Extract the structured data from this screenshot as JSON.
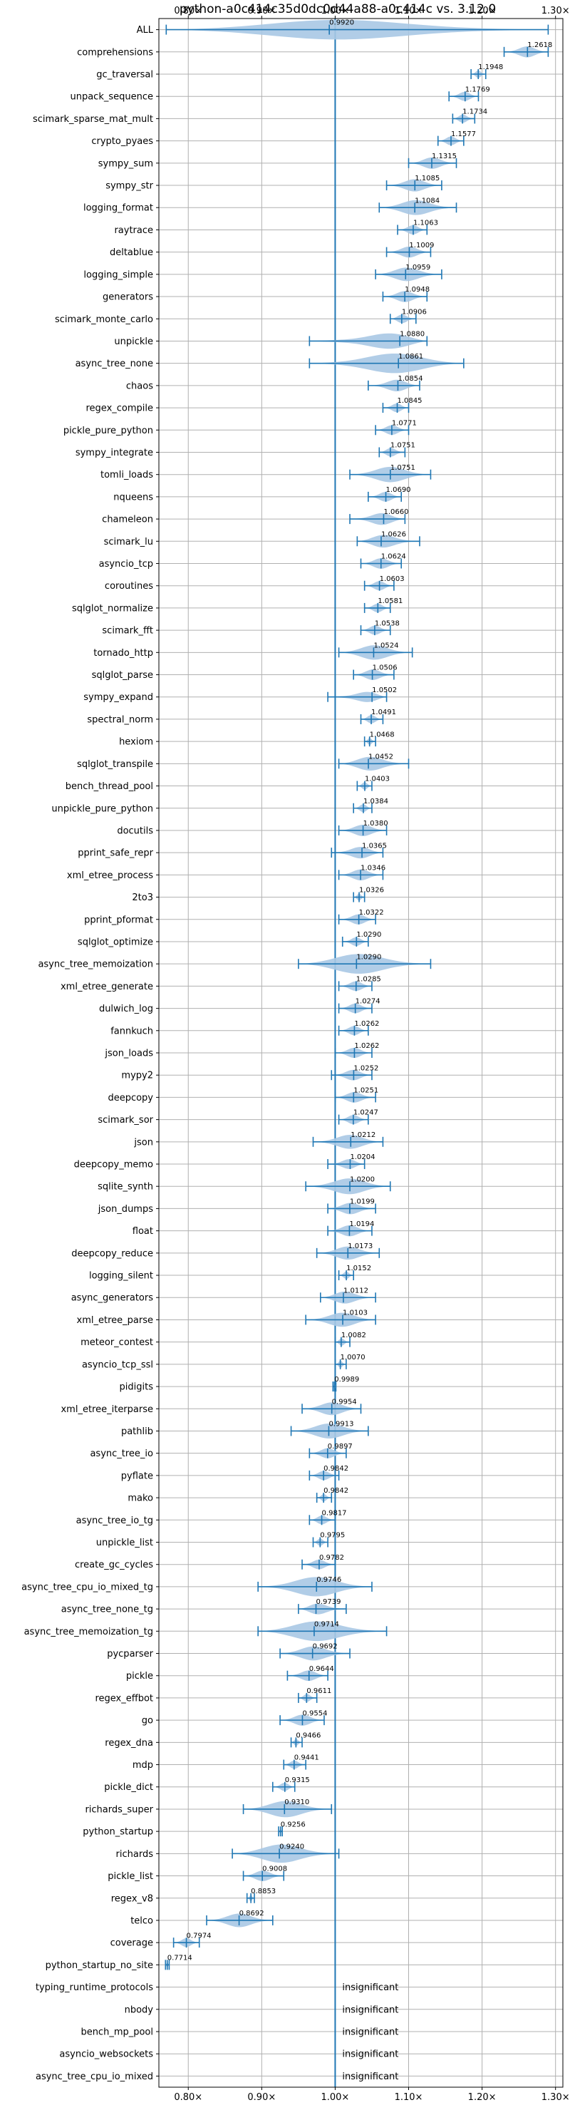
{
  "chart_data": {
    "type": "violin",
    "title": "python-a0c414c35d0dc0d44a88-a0c414c vs. 3.12.0",
    "xlabel": "",
    "ylabel": "",
    "xlim": [
      0.76,
      1.31
    ],
    "xticks": [
      {
        "value": 0.8,
        "label": "0.80×"
      },
      {
        "value": 0.9,
        "label": "0.90×"
      },
      {
        "value": 1.0,
        "label": "1.00×"
      },
      {
        "value": 1.1,
        "label": "1.10×"
      },
      {
        "value": 1.2,
        "label": "1.20×"
      },
      {
        "value": 1.3,
        "label": "1.30×"
      }
    ],
    "reference_line": 1.0,
    "grid": true,
    "colors": {
      "violin": "#a9c8e4",
      "line": "#1f77b4",
      "grid": "#b0b0b0"
    },
    "insignificant_text": "insignificant",
    "benchmarks": [
      {
        "name": "ALL",
        "value": 0.992,
        "label": "0.9920",
        "min": 0.77,
        "max": 1.29
      },
      {
        "name": "comprehensions",
        "value": 1.2618,
        "label": "1.2618",
        "min": 1.23,
        "max": 1.29
      },
      {
        "name": "gc_traversal",
        "value": 1.1948,
        "label": "1.1948",
        "min": 1.185,
        "max": 1.205
      },
      {
        "name": "unpack_sequence",
        "value": 1.1769,
        "label": "1.1769",
        "min": 1.155,
        "max": 1.195
      },
      {
        "name": "scimark_sparse_mat_mult",
        "value": 1.1734,
        "label": "1.1734",
        "min": 1.16,
        "max": 1.19
      },
      {
        "name": "crypto_pyaes",
        "value": 1.1577,
        "label": "1.1577",
        "min": 1.14,
        "max": 1.175
      },
      {
        "name": "sympy_sum",
        "value": 1.1315,
        "label": "1.1315",
        "min": 1.1,
        "max": 1.165
      },
      {
        "name": "sympy_str",
        "value": 1.1085,
        "label": "1.1085",
        "min": 1.07,
        "max": 1.145
      },
      {
        "name": "logging_format",
        "value": 1.1084,
        "label": "1.1084",
        "min": 1.06,
        "max": 1.165
      },
      {
        "name": "raytrace",
        "value": 1.1063,
        "label": "1.1063",
        "min": 1.085,
        "max": 1.125
      },
      {
        "name": "deltablue",
        "value": 1.1009,
        "label": "1.1009",
        "min": 1.07,
        "max": 1.13
      },
      {
        "name": "logging_simple",
        "value": 1.0959,
        "label": "1.0959",
        "min": 1.055,
        "max": 1.145
      },
      {
        "name": "generators",
        "value": 1.0948,
        "label": "1.0948",
        "min": 1.065,
        "max": 1.125
      },
      {
        "name": "scimark_monte_carlo",
        "value": 1.0906,
        "label": "1.0906",
        "min": 1.075,
        "max": 1.11
      },
      {
        "name": "unpickle",
        "value": 1.088,
        "label": "1.0880",
        "min": 0.965,
        "max": 1.125
      },
      {
        "name": "async_tree_none",
        "value": 1.0861,
        "label": "1.0861",
        "min": 0.965,
        "max": 1.175
      },
      {
        "name": "chaos",
        "value": 1.0854,
        "label": "1.0854",
        "min": 1.045,
        "max": 1.115
      },
      {
        "name": "regex_compile",
        "value": 1.0845,
        "label": "1.0845",
        "min": 1.065,
        "max": 1.1
      },
      {
        "name": "pickle_pure_python",
        "value": 1.0771,
        "label": "1.0771",
        "min": 1.055,
        "max": 1.1
      },
      {
        "name": "sympy_integrate",
        "value": 1.0751,
        "label": "1.0751",
        "min": 1.06,
        "max": 1.095
      },
      {
        "name": "tomli_loads",
        "value": 1.0751,
        "label": "1.0751",
        "min": 1.02,
        "max": 1.13
      },
      {
        "name": "nqueens",
        "value": 1.069,
        "label": "1.0690",
        "min": 1.045,
        "max": 1.09
      },
      {
        "name": "chameleon",
        "value": 1.066,
        "label": "1.0660",
        "min": 1.02,
        "max": 1.095
      },
      {
        "name": "scimark_lu",
        "value": 1.0626,
        "label": "1.0626",
        "min": 1.03,
        "max": 1.115
      },
      {
        "name": "asyncio_tcp",
        "value": 1.0624,
        "label": "1.0624",
        "min": 1.035,
        "max": 1.09
      },
      {
        "name": "coroutines",
        "value": 1.0603,
        "label": "1.0603",
        "min": 1.04,
        "max": 1.08
      },
      {
        "name": "sqlglot_normalize",
        "value": 1.0581,
        "label": "1.0581",
        "min": 1.04,
        "max": 1.075
      },
      {
        "name": "scimark_fft",
        "value": 1.0538,
        "label": "1.0538",
        "min": 1.035,
        "max": 1.075
      },
      {
        "name": "tornado_http",
        "value": 1.0524,
        "label": "1.0524",
        "min": 1.005,
        "max": 1.105
      },
      {
        "name": "sqlglot_parse",
        "value": 1.0506,
        "label": "1.0506",
        "min": 1.025,
        "max": 1.08
      },
      {
        "name": "sympy_expand",
        "value": 1.0502,
        "label": "1.0502",
        "min": 0.99,
        "max": 1.07
      },
      {
        "name": "spectral_norm",
        "value": 1.0491,
        "label": "1.0491",
        "min": 1.035,
        "max": 1.065
      },
      {
        "name": "hexiom",
        "value": 1.0468,
        "label": "1.0468",
        "min": 1.04,
        "max": 1.055
      },
      {
        "name": "sqlglot_transpile",
        "value": 1.0452,
        "label": "1.0452",
        "min": 1.005,
        "max": 1.1
      },
      {
        "name": "bench_thread_pool",
        "value": 1.0403,
        "label": "1.0403",
        "min": 1.03,
        "max": 1.05
      },
      {
        "name": "unpickle_pure_python",
        "value": 1.0384,
        "label": "1.0384",
        "min": 1.025,
        "max": 1.05
      },
      {
        "name": "docutils",
        "value": 1.038,
        "label": "1.0380",
        "min": 1.005,
        "max": 1.07
      },
      {
        "name": "pprint_safe_repr",
        "value": 1.0365,
        "label": "1.0365",
        "min": 0.995,
        "max": 1.065
      },
      {
        "name": "xml_etree_process",
        "value": 1.0346,
        "label": "1.0346",
        "min": 1.005,
        "max": 1.065
      },
      {
        "name": "2to3",
        "value": 1.0326,
        "label": "1.0326",
        "min": 1.025,
        "max": 1.04
      },
      {
        "name": "pprint_pformat",
        "value": 1.0322,
        "label": "1.0322",
        "min": 1.005,
        "max": 1.055
      },
      {
        "name": "sqlglot_optimize",
        "value": 1.029,
        "label": "1.0290",
        "min": 1.01,
        "max": 1.045
      },
      {
        "name": "async_tree_memoization",
        "value": 1.029,
        "label": "1.0290",
        "min": 0.95,
        "max": 1.13
      },
      {
        "name": "xml_etree_generate",
        "value": 1.0285,
        "label": "1.0285",
        "min": 1.005,
        "max": 1.05
      },
      {
        "name": "dulwich_log",
        "value": 1.0274,
        "label": "1.0274",
        "min": 1.005,
        "max": 1.05
      },
      {
        "name": "fannkuch",
        "value": 1.0262,
        "label": "1.0262",
        "min": 1.005,
        "max": 1.045
      },
      {
        "name": "json_loads",
        "value": 1.0262,
        "label": "1.0262",
        "min": 1.0,
        "max": 1.05
      },
      {
        "name": "mypy2",
        "value": 1.0252,
        "label": "1.0252",
        "min": 0.995,
        "max": 1.05
      },
      {
        "name": "deepcopy",
        "value": 1.0251,
        "label": "1.0251",
        "min": 1.0,
        "max": 1.055
      },
      {
        "name": "scimark_sor",
        "value": 1.0247,
        "label": "1.0247",
        "min": 1.005,
        "max": 1.045
      },
      {
        "name": "json",
        "value": 1.0212,
        "label": "1.0212",
        "min": 0.97,
        "max": 1.065
      },
      {
        "name": "deepcopy_memo",
        "value": 1.0204,
        "label": "1.0204",
        "min": 0.99,
        "max": 1.04
      },
      {
        "name": "sqlite_synth",
        "value": 1.02,
        "label": "1.0200",
        "min": 0.96,
        "max": 1.075
      },
      {
        "name": "json_dumps",
        "value": 1.0199,
        "label": "1.0199",
        "min": 0.99,
        "max": 1.055
      },
      {
        "name": "float",
        "value": 1.0194,
        "label": "1.0194",
        "min": 0.99,
        "max": 1.05
      },
      {
        "name": "deepcopy_reduce",
        "value": 1.0173,
        "label": "1.0173",
        "min": 0.975,
        "max": 1.06
      },
      {
        "name": "logging_silent",
        "value": 1.0152,
        "label": "1.0152",
        "min": 1.005,
        "max": 1.025
      },
      {
        "name": "async_generators",
        "value": 1.0112,
        "label": "1.0112",
        "min": 0.98,
        "max": 1.055
      },
      {
        "name": "xml_etree_parse",
        "value": 1.0103,
        "label": "1.0103",
        "min": 0.96,
        "max": 1.055
      },
      {
        "name": "meteor_contest",
        "value": 1.0082,
        "label": "1.0082",
        "min": 1.0,
        "max": 1.02
      },
      {
        "name": "asyncio_tcp_ssl",
        "value": 1.007,
        "label": "1.0070",
        "min": 1.0,
        "max": 1.015
      },
      {
        "name": "pidigits",
        "value": 0.9989,
        "label": "0.9989",
        "min": 0.997,
        "max": 1.001
      },
      {
        "name": "xml_etree_iterparse",
        "value": 0.9954,
        "label": "0.9954",
        "min": 0.955,
        "max": 1.035
      },
      {
        "name": "pathlib",
        "value": 0.9913,
        "label": "0.9913",
        "min": 0.94,
        "max": 1.045
      },
      {
        "name": "async_tree_io",
        "value": 0.9897,
        "label": "0.9897",
        "min": 0.965,
        "max": 1.015
      },
      {
        "name": "pyflate",
        "value": 0.9842,
        "label": "0.9842",
        "min": 0.965,
        "max": 1.005
      },
      {
        "name": "mako",
        "value": 0.9842,
        "label": "0.9842",
        "min": 0.975,
        "max": 0.995
      },
      {
        "name": "async_tree_io_tg",
        "value": 0.9817,
        "label": "0.9817",
        "min": 0.965,
        "max": 1.0
      },
      {
        "name": "unpickle_list",
        "value": 0.9795,
        "label": "0.9795",
        "min": 0.97,
        "max": 0.99
      },
      {
        "name": "create_gc_cycles",
        "value": 0.9782,
        "label": "0.9782",
        "min": 0.955,
        "max": 1.0
      },
      {
        "name": "async_tree_cpu_io_mixed_tg",
        "value": 0.9746,
        "label": "0.9746",
        "min": 0.895,
        "max": 1.05
      },
      {
        "name": "async_tree_none_tg",
        "value": 0.9739,
        "label": "0.9739",
        "min": 0.95,
        "max": 1.015
      },
      {
        "name": "async_tree_memoization_tg",
        "value": 0.9714,
        "label": "0.9714",
        "min": 0.895,
        "max": 1.07
      },
      {
        "name": "pycparser",
        "value": 0.9692,
        "label": "0.9692",
        "min": 0.925,
        "max": 1.02
      },
      {
        "name": "pickle",
        "value": 0.9644,
        "label": "0.9644",
        "min": 0.935,
        "max": 0.99
      },
      {
        "name": "regex_effbot",
        "value": 0.9611,
        "label": "0.9611",
        "min": 0.95,
        "max": 0.975
      },
      {
        "name": "go",
        "value": 0.9554,
        "label": "0.9554",
        "min": 0.925,
        "max": 0.985
      },
      {
        "name": "regex_dna",
        "value": 0.9466,
        "label": "0.9466",
        "min": 0.94,
        "max": 0.955
      },
      {
        "name": "mdp",
        "value": 0.9441,
        "label": "0.9441",
        "min": 0.93,
        "max": 0.96
      },
      {
        "name": "pickle_dict",
        "value": 0.9315,
        "label": "0.9315",
        "min": 0.915,
        "max": 0.945
      },
      {
        "name": "richards_super",
        "value": 0.931,
        "label": "0.9310",
        "min": 0.875,
        "max": 0.995
      },
      {
        "name": "python_startup",
        "value": 0.9256,
        "label": "0.9256",
        "min": 0.923,
        "max": 0.928
      },
      {
        "name": "richards",
        "value": 0.924,
        "label": "0.9240",
        "min": 0.86,
        "max": 1.005
      },
      {
        "name": "pickle_list",
        "value": 0.9008,
        "label": "0.9008",
        "min": 0.875,
        "max": 0.93
      },
      {
        "name": "regex_v8",
        "value": 0.8853,
        "label": "0.8853",
        "min": 0.88,
        "max": 0.89
      },
      {
        "name": "telco",
        "value": 0.8692,
        "label": "0.8692",
        "min": 0.825,
        "max": 0.915
      },
      {
        "name": "coverage",
        "value": 0.7974,
        "label": "0.7974",
        "min": 0.78,
        "max": 0.815
      },
      {
        "name": "python_startup_no_site",
        "value": 0.7714,
        "label": "0.7714",
        "min": 0.769,
        "max": 0.774
      },
      {
        "name": "typing_runtime_protocols",
        "insignificant": true
      },
      {
        "name": "nbody",
        "insignificant": true
      },
      {
        "name": "bench_mp_pool",
        "insignificant": true
      },
      {
        "name": "asyncio_websockets",
        "insignificant": true
      },
      {
        "name": "async_tree_cpu_io_mixed",
        "insignificant": true
      }
    ]
  }
}
